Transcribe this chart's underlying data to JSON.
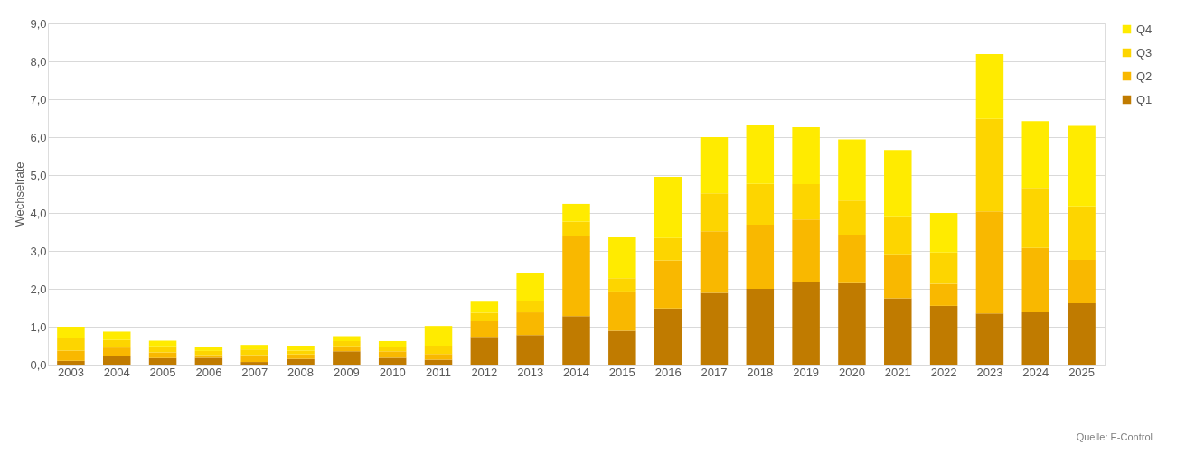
{
  "chart_data": {
    "type": "bar",
    "stacked": true,
    "ylabel": "Wechselrate",
    "categories": [
      "2003",
      "2004",
      "2005",
      "2006",
      "2007",
      "2008",
      "2009",
      "2010",
      "2011",
      "2012",
      "2013",
      "2014",
      "2015",
      "2016",
      "2017",
      "2018",
      "2019",
      "2020",
      "2021",
      "2022",
      "2023",
      "2024",
      "2025"
    ],
    "series": [
      {
        "name": "Q1",
        "color": "#c07b00",
        "values": [
          0.1,
          0.23,
          0.17,
          0.18,
          0.07,
          0.15,
          0.35,
          0.18,
          0.13,
          0.73,
          0.78,
          1.28,
          0.89,
          1.48,
          1.89,
          2.0,
          2.18,
          2.15,
          1.75,
          1.55,
          1.35,
          1.38,
          1.62
        ]
      },
      {
        "name": "Q2",
        "color": "#f9b800",
        "values": [
          0.27,
          0.22,
          0.15,
          0.07,
          0.18,
          0.12,
          0.13,
          0.17,
          0.15,
          0.41,
          0.6,
          2.11,
          1.04,
          1.27,
          1.63,
          1.69,
          1.65,
          1.28,
          1.16,
          0.58,
          2.69,
          1.7,
          1.14
        ]
      },
      {
        "name": "Q3",
        "color": "#fdd500",
        "values": [
          0.33,
          0.2,
          0.16,
          0.11,
          0.15,
          0.1,
          0.14,
          0.12,
          0.22,
          0.23,
          0.29,
          0.38,
          0.35,
          0.59,
          1.0,
          1.08,
          0.93,
          0.9,
          1.0,
          0.83,
          2.44,
          1.58,
          1.41
        ]
      },
      {
        "name": "Q4",
        "color": "#ffeb00",
        "values": [
          0.3,
          0.22,
          0.15,
          0.11,
          0.12,
          0.13,
          0.13,
          0.15,
          0.52,
          0.29,
          0.76,
          0.47,
          1.08,
          1.61,
          1.48,
          1.56,
          1.5,
          1.61,
          1.75,
          1.04,
          1.71,
          1.76,
          2.13
        ]
      }
    ],
    "ylim": [
      0,
      9
    ],
    "yticks": [
      {
        "value": 0,
        "label": "0,0"
      },
      {
        "value": 1,
        "label": "1,0"
      },
      {
        "value": 2,
        "label": "2,0"
      },
      {
        "value": 3,
        "label": "3,0"
      },
      {
        "value": 4,
        "label": "4,0"
      },
      {
        "value": 5,
        "label": "5,0"
      },
      {
        "value": 6,
        "label": "6,0"
      },
      {
        "value": 7,
        "label": "7,0"
      },
      {
        "value": 8,
        "label": "8,0"
      },
      {
        "value": 9,
        "label": "9,0"
      }
    ],
    "grid": "y",
    "legend": "right",
    "annotations": [
      "Quelle: E-Control"
    ]
  }
}
